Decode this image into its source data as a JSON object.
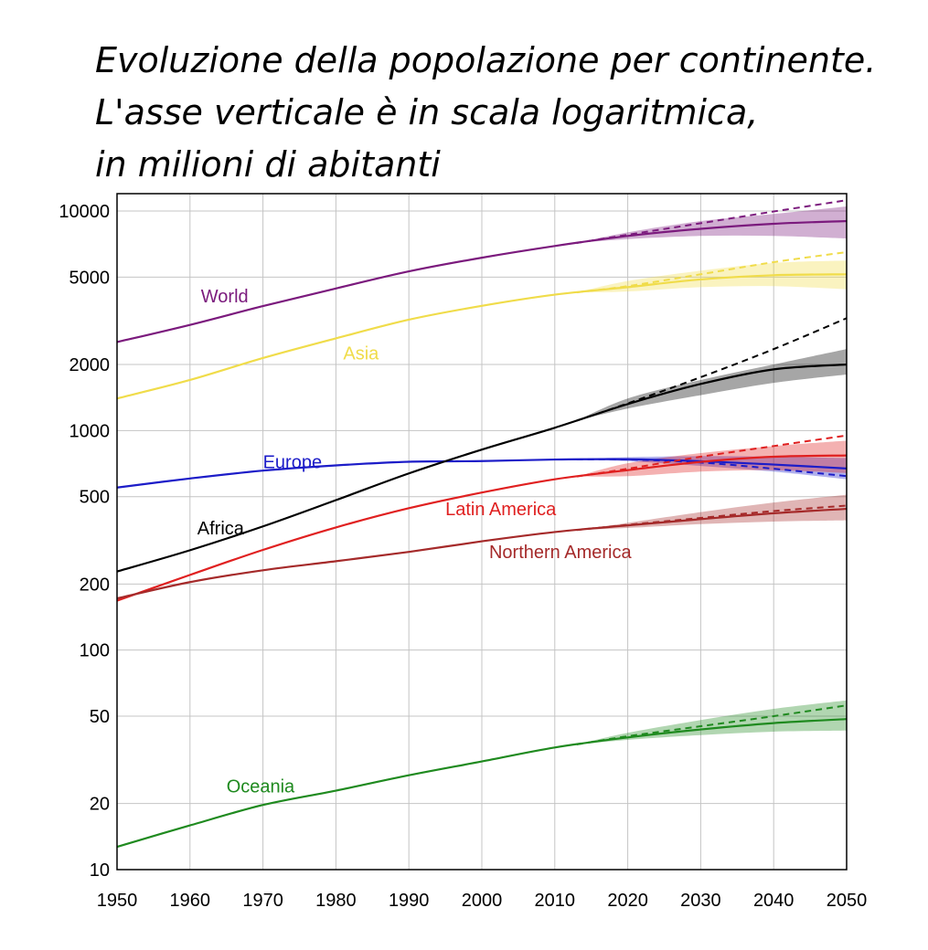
{
  "title_lines": [
    "Evoluzione della popolazione per continente.",
    "L'asse verticale è in scala logaritmica,",
    "in milioni di abitanti"
  ],
  "chart_data": {
    "type": "line",
    "title": "Evoluzione della popolazione per continente. L'asse verticale è in scala logaritmica, in milioni di abitanti",
    "xlabel": "",
    "ylabel": "",
    "yscale": "log",
    "xlim": [
      1950,
      2050
    ],
    "ylim": [
      10,
      12000
    ],
    "grid": true,
    "x_ticks": [
      1950,
      1960,
      1970,
      1980,
      1990,
      2000,
      2010,
      2020,
      2030,
      2040,
      2050
    ],
    "y_ticks": [
      10,
      20,
      50,
      100,
      200,
      500,
      1000,
      2000,
      5000,
      10000
    ],
    "y_tick_labels": [
      "10",
      "20",
      "50",
      "100",
      "200",
      "500",
      "1000",
      "2000",
      "5000",
      "10000"
    ],
    "projection_start": 2013,
    "x": [
      1950,
      1960,
      1970,
      1980,
      1990,
      2000,
      2010,
      2020,
      2030,
      2040,
      2050
    ],
    "series": [
      {
        "name": "World",
        "color": "#7b1a7d",
        "values": [
          2530,
          3030,
          3690,
          4440,
          5310,
          6130,
          6930,
          7700,
          8300,
          8750,
          9000
        ],
        "high": [
          null,
          null,
          null,
          null,
          null,
          null,
          null,
          8000,
          9000,
          9700,
          10500
        ],
        "low": [
          null,
          null,
          null,
          null,
          null,
          null,
          null,
          7450,
          7700,
          7700,
          7500
        ],
        "dashed": [
          null,
          null,
          null,
          null,
          null,
          null,
          null,
          7800,
          8800,
          9950,
          11200
        ],
        "label_at": [
          1961.5,
          4100
        ]
      },
      {
        "name": "Asia",
        "color": "#f0dc4a",
        "values": [
          1400,
          1700,
          2140,
          2630,
          3200,
          3700,
          4160,
          4500,
          4880,
          5100,
          5150
        ],
        "high": [
          null,
          null,
          null,
          null,
          null,
          null,
          null,
          4800,
          5350,
          5800,
          5950
        ],
        "low": [
          null,
          null,
          null,
          null,
          null,
          null,
          null,
          4300,
          4500,
          4550,
          4400
        ],
        "dashed": [
          null,
          null,
          null,
          null,
          null,
          null,
          null,
          4550,
          5150,
          5850,
          6500
        ],
        "label_at": [
          1981,
          2250
        ]
      },
      {
        "name": "Europe",
        "color": "#1c1cc8",
        "values": [
          550,
          605,
          657,
          694,
          721,
          726,
          738,
          740,
          725,
          700,
          672
        ],
        "high": [
          null,
          null,
          null,
          null,
          null,
          null,
          null,
          756,
          765,
          760,
          750
        ],
        "low": [
          null,
          null,
          null,
          null,
          null,
          null,
          null,
          725,
          690,
          650,
          600
        ],
        "dashed": [
          null,
          null,
          null,
          null,
          null,
          null,
          null,
          738,
          715,
          670,
          620
        ],
        "label_at": [
          1970,
          720
        ]
      },
      {
        "name": "Africa",
        "color": "#000000",
        "values": [
          228,
          285,
          366,
          482,
          638,
          819,
          1030,
          1320,
          1630,
          1900,
          2000
        ],
        "high": [
          null,
          null,
          null,
          null,
          null,
          null,
          null,
          1400,
          1700,
          2000,
          2350
        ],
        "low": [
          null,
          null,
          null,
          null,
          null,
          null,
          null,
          1260,
          1450,
          1650,
          1800
        ],
        "dashed": [
          null,
          null,
          null,
          null,
          null,
          null,
          null,
          1330,
          1750,
          2350,
          3250
        ],
        "label_at": [
          1961,
          360
        ]
      },
      {
        "name": "Latin America",
        "color": "#e02020",
        "values": [
          168,
          220,
          286,
          362,
          443,
          522,
          600,
          660,
          720,
          760,
          770
        ],
        "high": [
          null,
          null,
          null,
          null,
          null,
          null,
          null,
          710,
          790,
          850,
          900
        ],
        "low": [
          null,
          null,
          null,
          null,
          null,
          null,
          null,
          620,
          650,
          660,
          640
        ],
        "dashed": [
          null,
          null,
          null,
          null,
          null,
          null,
          null,
          670,
          760,
          850,
          950
        ],
        "label_at": [
          1995,
          440
        ]
      },
      {
        "name": "Northern America",
        "color": "#a52a2a",
        "values": [
          172,
          204,
          231,
          254,
          280,
          313,
          345,
          370,
          395,
          420,
          440
        ],
        "high": [
          null,
          null,
          null,
          null,
          null,
          null,
          null,
          380,
          425,
          470,
          510
        ],
        "low": [
          null,
          null,
          null,
          null,
          null,
          null,
          null,
          360,
          375,
          385,
          390
        ],
        "dashed": [
          null,
          null,
          null,
          null,
          null,
          null,
          null,
          372,
          400,
          430,
          455
        ],
        "label_at": [
          2001,
          280
        ]
      },
      {
        "name": "Oceania",
        "color": "#1f8a1f",
        "values": [
          12.7,
          15.9,
          19.7,
          22.9,
          26.9,
          31.1,
          36.0,
          40.0,
          43.5,
          46.5,
          48.5
        ],
        "high": [
          null,
          null,
          null,
          null,
          null,
          null,
          null,
          42,
          48,
          54,
          59
        ],
        "low": [
          null,
          null,
          null,
          null,
          null,
          null,
          null,
          39,
          41,
          42.5,
          43
        ],
        "dashed": [
          null,
          null,
          null,
          null,
          null,
          null,
          null,
          40.5,
          45,
          50,
          56
        ],
        "label_at": [
          1965,
          24
        ]
      }
    ]
  }
}
